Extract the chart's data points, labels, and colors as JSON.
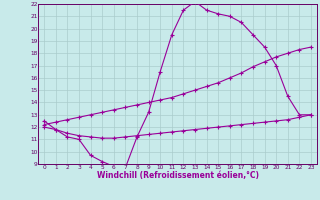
{
  "xlabel": "Windchill (Refroidissement éolien,°C)",
  "bg_color": "#c8eaea",
  "line_color": "#990099",
  "grid_color": "#aacccc",
  "xlim": [
    -0.5,
    23.5
  ],
  "ylim": [
    9,
    22
  ],
  "xticks": [
    0,
    1,
    2,
    3,
    4,
    5,
    6,
    7,
    8,
    9,
    10,
    11,
    12,
    13,
    14,
    15,
    16,
    17,
    18,
    19,
    20,
    21,
    22,
    23
  ],
  "yticks": [
    9,
    10,
    11,
    12,
    13,
    14,
    15,
    16,
    17,
    18,
    19,
    20,
    21,
    22
  ],
  "line1_x": [
    0,
    1,
    2,
    3,
    4,
    5,
    6,
    7,
    8,
    9,
    10,
    11,
    12,
    13,
    14,
    15,
    16,
    17,
    18,
    19,
    20,
    21,
    22,
    23
  ],
  "line1_y": [
    12.5,
    11.8,
    11.2,
    11.0,
    9.7,
    9.2,
    8.8,
    8.7,
    11.2,
    13.2,
    16.5,
    19.5,
    21.5,
    22.2,
    21.5,
    21.2,
    21.0,
    20.5,
    19.5,
    18.5,
    17.0,
    14.5,
    13.0,
    13.0
  ],
  "line2_x": [
    0,
    1,
    2,
    3,
    4,
    5,
    6,
    7,
    8,
    9,
    10,
    11,
    12,
    13,
    14,
    15,
    16,
    17,
    18,
    19,
    20,
    21,
    22,
    23
  ],
  "line2_y": [
    12.2,
    12.4,
    12.6,
    12.8,
    13.0,
    13.2,
    13.4,
    13.6,
    13.8,
    14.0,
    14.2,
    14.4,
    14.7,
    15.0,
    15.3,
    15.6,
    16.0,
    16.4,
    16.9,
    17.3,
    17.7,
    18.0,
    18.3,
    18.5
  ],
  "line3_x": [
    0,
    1,
    2,
    3,
    4,
    5,
    6,
    7,
    8,
    9,
    10,
    11,
    12,
    13,
    14,
    15,
    16,
    17,
    18,
    19,
    20,
    21,
    22,
    23
  ],
  "line3_y": [
    12.0,
    11.8,
    11.5,
    11.3,
    11.2,
    11.1,
    11.1,
    11.2,
    11.3,
    11.4,
    11.5,
    11.6,
    11.7,
    11.8,
    11.9,
    12.0,
    12.1,
    12.2,
    12.3,
    12.4,
    12.5,
    12.6,
    12.8,
    13.0
  ]
}
